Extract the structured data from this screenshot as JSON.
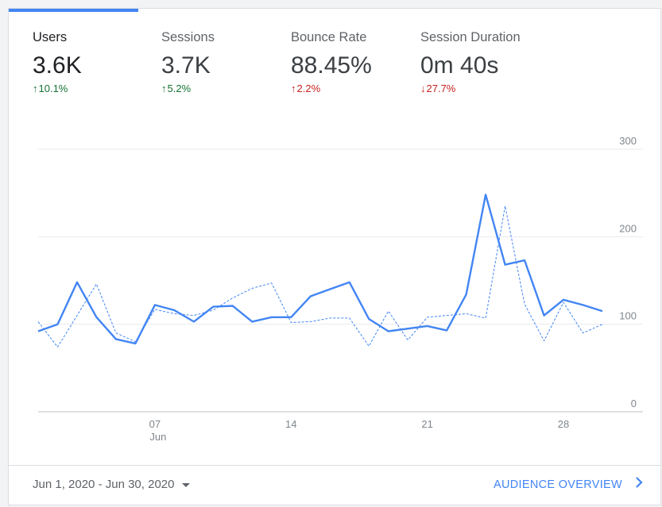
{
  "metrics": [
    {
      "label": "Users",
      "value": "3.6K",
      "change": "10.1%",
      "direction": "up",
      "color": "#137333",
      "arrow": "↑"
    },
    {
      "label": "Sessions",
      "value": "3.7K",
      "change": "5.2%",
      "direction": "up",
      "color": "#137333",
      "arrow": "↑"
    },
    {
      "label": "Bounce Rate",
      "value": "88.45%",
      "change": "2.2%",
      "direction": "up",
      "color": "#c5221f",
      "arrow": "↑"
    },
    {
      "label": "Session Duration",
      "value": "0m 40s",
      "change": "27.7%",
      "direction": "down",
      "color": "#c5221f",
      "arrow": "↓"
    }
  ],
  "chart_data": {
    "type": "line",
    "x_ticks": [
      {
        "day": 7,
        "label": "07",
        "sublabel": "Jun"
      },
      {
        "day": 14,
        "label": "14",
        "sublabel": ""
      },
      {
        "day": 21,
        "label": "21",
        "sublabel": ""
      },
      {
        "day": 28,
        "label": "28",
        "sublabel": ""
      }
    ],
    "y_ticks": [
      0,
      100,
      200,
      300
    ],
    "ylim": [
      0,
      300
    ],
    "xlim": [
      1,
      30
    ],
    "y_axis_position": "right",
    "grid": true,
    "series": [
      {
        "style": "solid",
        "color": "#4285f4",
        "values": [
          92,
          100,
          148,
          108,
          83,
          78,
          122,
          116,
          103,
          120,
          121,
          103,
          108,
          108,
          132,
          140,
          148,
          106,
          92,
          95,
          98,
          93,
          134,
          248,
          168,
          173,
          110,
          128,
          122,
          115
        ]
      },
      {
        "style": "dashed",
        "color": "#4285f4",
        "values": [
          103,
          74,
          110,
          146,
          90,
          80,
          117,
          112,
          110,
          116,
          130,
          141,
          147,
          102,
          103,
          107,
          107,
          75,
          115,
          82,
          108,
          110,
          112,
          107,
          235,
          123,
          81,
          125,
          90,
          100
        ]
      }
    ]
  },
  "footer": {
    "date_range": "Jun 1, 2020 - Jun 30, 2020",
    "link_label": "AUDIENCE OVERVIEW"
  }
}
